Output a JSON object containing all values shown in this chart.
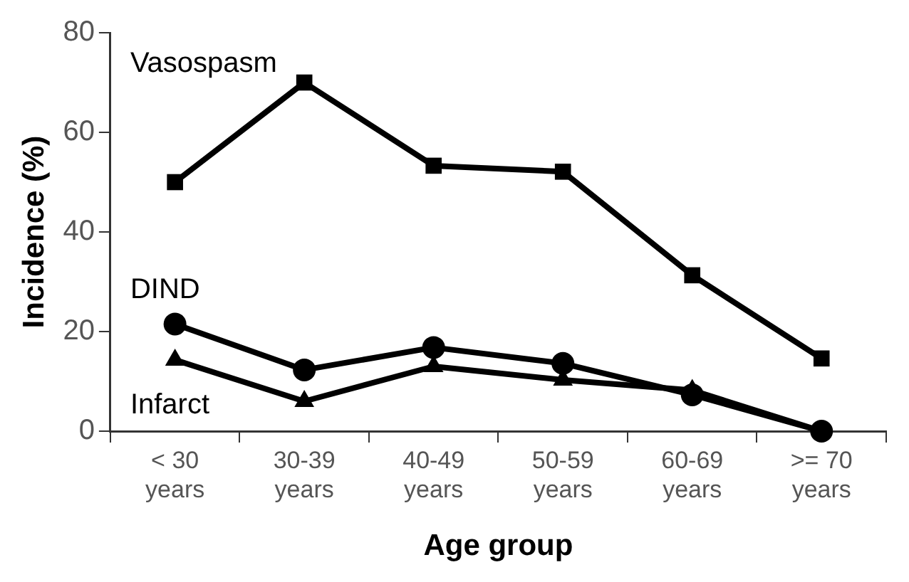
{
  "chart_data": {
    "type": "line",
    "xlabel": "Age group",
    "ylabel": "Incidence (%)",
    "categories": [
      "< 30\nyears",
      "30-39\nyears",
      "40-49\nyears",
      "50-59\nyears",
      "60-69\nyears",
      ">= 70\nyears"
    ],
    "ylim": [
      0,
      80
    ],
    "yticks": [
      0,
      20,
      40,
      60,
      80
    ],
    "grid": false,
    "legend": false,
    "series": [
      {
        "name": "Vasospasm",
        "color": "#000000",
        "marker": "square",
        "values": [
          50,
          70,
          53.3,
          52.1,
          31.3,
          14.6
        ]
      },
      {
        "name": "DIND",
        "color": "#000000",
        "marker": "circle",
        "values": [
          21.5,
          12.3,
          16.8,
          13.6,
          7.3,
          0
        ]
      },
      {
        "name": "Infarct",
        "color": "#000000",
        "marker": "triangle",
        "values": [
          14.3,
          6,
          13,
          10.3,
          8.2,
          0
        ]
      }
    ]
  }
}
